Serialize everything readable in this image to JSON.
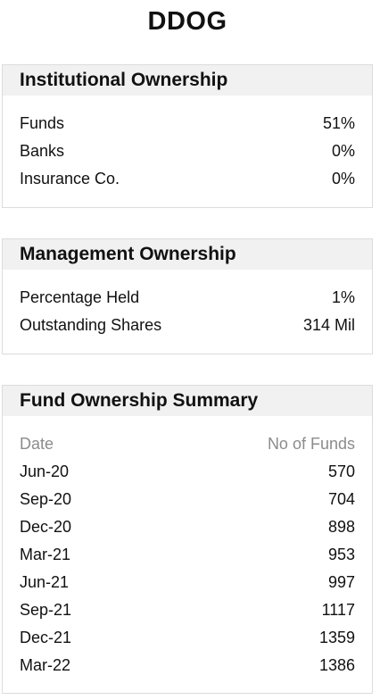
{
  "ticker": "DDOG",
  "institutional": {
    "title": "Institutional Ownership",
    "rows": [
      {
        "label": "Funds",
        "value": "51%"
      },
      {
        "label": "Banks",
        "value": "0%"
      },
      {
        "label": "Insurance Co.",
        "value": "0%"
      }
    ]
  },
  "management": {
    "title": "Management Ownership",
    "rows": [
      {
        "label": "Percentage Held",
        "value": "1%"
      },
      {
        "label": "Outstanding Shares",
        "value": "314 Mil"
      }
    ]
  },
  "fund_summary": {
    "title": "Fund Ownership Summary",
    "columns": [
      "Date",
      "No of Funds"
    ],
    "rows": [
      {
        "date": "Jun-20",
        "funds": "570"
      },
      {
        "date": "Sep-20",
        "funds": "704"
      },
      {
        "date": "Dec-20",
        "funds": "898"
      },
      {
        "date": "Mar-21",
        "funds": "953"
      },
      {
        "date": "Jun-21",
        "funds": "997"
      },
      {
        "date": "Sep-21",
        "funds": "1117"
      },
      {
        "date": "Dec-21",
        "funds": "1359"
      },
      {
        "date": "Mar-22",
        "funds": "1386"
      }
    ]
  }
}
